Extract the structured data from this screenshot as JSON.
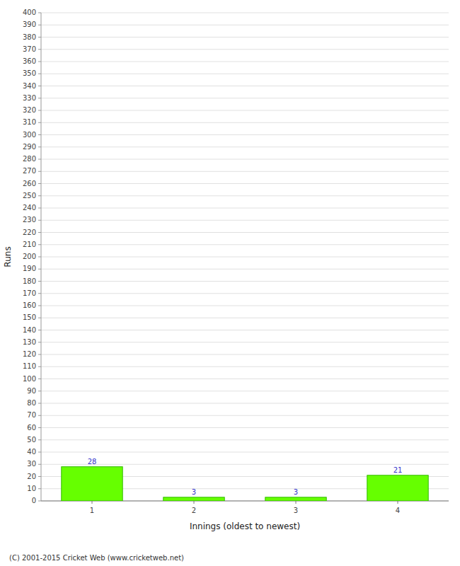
{
  "chart_data": {
    "type": "bar",
    "categories": [
      "1",
      "2",
      "3",
      "4"
    ],
    "values": [
      28,
      3,
      3,
      21
    ],
    "color": "#66ff00",
    "x_label": "Innings (oldest to newest)",
    "y_label": "Runs",
    "ylim": [
      0,
      400
    ],
    "yticks": [
      0,
      10,
      20,
      30,
      40,
      50,
      60,
      70,
      80,
      90,
      100,
      110,
      120,
      130,
      140,
      150,
      160,
      170,
      180,
      190,
      200,
      210,
      220,
      230,
      240,
      250,
      260,
      270,
      280,
      290,
      300,
      310,
      320,
      330,
      340,
      350,
      360,
      370,
      380,
      390,
      400
    ],
    "grid": true,
    "data_labels": true,
    "annotations": [
      "(C) 2001-2015 Cricket Web (www.cricketweb.net)"
    ]
  }
}
